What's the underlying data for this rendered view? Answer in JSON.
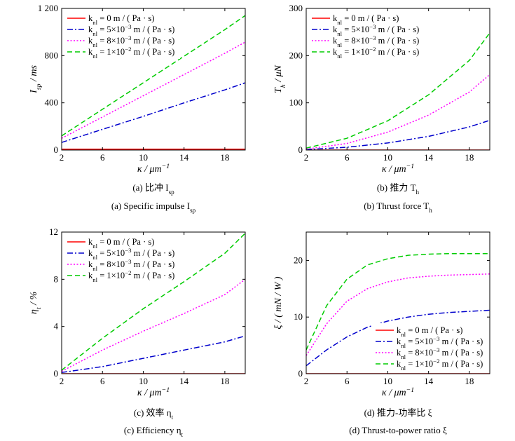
{
  "chart_data": [
    {
      "type": "line",
      "xlabel": "κ / μm⁻¹",
      "ylabel": "I_sp / ms",
      "xlim": [
        2,
        20
      ],
      "ylim": [
        0,
        1200
      ],
      "xticks": [
        2,
        6,
        10,
        14,
        18
      ],
      "yticks": [
        0,
        400,
        800,
        1200
      ],
      "ytick_labels": [
        "0",
        "400",
        "800",
        "1 200"
      ],
      "legend_position": "top-left",
      "caption_cn": "(a) 比冲 I_sp",
      "caption_en": "(a) Specific impulse I_sp",
      "series": [
        {
          "name": "k_nl = 0 m / ( Pa · s)",
          "color": "#ff0000",
          "dash": "solid",
          "x": [
            2,
            6,
            10,
            14,
            20
          ],
          "y": [
            8,
            8,
            8,
            8,
            8
          ]
        },
        {
          "name": "k_nl = 5×10⁻³ m / ( Pa · s)",
          "color": "#0000cc",
          "dash": "dashdot",
          "x": [
            2,
            6,
            10,
            14,
            18,
            20
          ],
          "y": [
            65,
            175,
            285,
            400,
            510,
            570
          ]
        },
        {
          "name": "k_nl = 8×10⁻³ m / ( Pa · s)",
          "color": "#ff00ff",
          "dash": "dotted",
          "x": [
            2,
            6,
            10,
            14,
            18,
            20
          ],
          "y": [
            100,
            280,
            460,
            640,
            820,
            915
          ]
        },
        {
          "name": "k_nl = 1×10⁻² m / ( Pa · s)",
          "color": "#00cc00",
          "dash": "dashed",
          "x": [
            2,
            6,
            10,
            14,
            18,
            20
          ],
          "y": [
            120,
            345,
            570,
            795,
            1020,
            1140
          ]
        }
      ]
    },
    {
      "type": "line",
      "xlabel": "κ / μm⁻¹",
      "ylabel": "T_h / μN",
      "xlim": [
        2,
        20
      ],
      "ylim": [
        0,
        300
      ],
      "xticks": [
        2,
        6,
        10,
        14,
        18
      ],
      "yticks": [
        0,
        100,
        200,
        300
      ],
      "ytick_labels": [
        "0",
        "100",
        "200",
        "300"
      ],
      "legend_position": "top-left",
      "caption_cn": "(b) 推力 T_h",
      "caption_en": "(b) Thrust force T_h",
      "series": [
        {
          "name": "k_nl = 0 m / ( Pa · s)",
          "color": "#ff0000",
          "dash": "solid",
          "x": [
            2,
            20
          ],
          "y": [
            0,
            0
          ]
        },
        {
          "name": "k_nl = 5×10⁻³ m / ( Pa · s)",
          "color": "#0000cc",
          "dash": "dashdot",
          "x": [
            2,
            6,
            10,
            14,
            18,
            20
          ],
          "y": [
            1,
            6,
            15,
            29,
            49,
            63
          ]
        },
        {
          "name": "k_nl = 8×10⁻³ m / ( Pa · s)",
          "color": "#ff00ff",
          "dash": "dotted",
          "x": [
            2,
            6,
            10,
            14,
            18,
            20
          ],
          "y": [
            2,
            14,
            38,
            74,
            123,
            160
          ]
        },
        {
          "name": "k_nl = 1×10⁻² m / ( Pa · s)",
          "color": "#00cc00",
          "dash": "dashed",
          "x": [
            2,
            6,
            10,
            14,
            18,
            20
          ],
          "y": [
            4,
            25,
            62,
            117,
            190,
            248
          ]
        }
      ]
    },
    {
      "type": "line",
      "xlabel": "κ / μm⁻¹",
      "ylabel": "η_t / %",
      "xlim": [
        2,
        20
      ],
      "ylim": [
        0,
        12
      ],
      "xticks": [
        2,
        6,
        10,
        14,
        18
      ],
      "yticks": [
        0,
        4,
        8,
        12
      ],
      "ytick_labels": [
        "0",
        "4",
        "8",
        "12"
      ],
      "legend_position": "top-left",
      "caption_cn": "(c) 效率 η_t",
      "caption_en": "(c) Efficiency η_t",
      "series": [
        {
          "name": "k_nl = 0 m / ( Pa · s)",
          "color": "#ff0000",
          "dash": "solid",
          "x": [
            2,
            20
          ],
          "y": [
            0,
            0
          ]
        },
        {
          "name": "k_nl = 5×10⁻³ m / ( Pa · s)",
          "color": "#0000cc",
          "dash": "dashdot",
          "x": [
            2,
            6,
            10,
            14,
            18,
            20
          ],
          "y": [
            0.1,
            0.6,
            1.3,
            2.0,
            2.7,
            3.2
          ]
        },
        {
          "name": "k_nl = 8×10⁻³ m / ( Pa · s)",
          "color": "#ff00ff",
          "dash": "dotted",
          "x": [
            2,
            6,
            10,
            14,
            18,
            20
          ],
          "y": [
            0.2,
            2.0,
            3.6,
            5.1,
            6.7,
            8.0
          ]
        },
        {
          "name": "k_nl = 1×10⁻² m / ( Pa · s)",
          "color": "#00cc00",
          "dash": "dashed",
          "x": [
            2,
            6,
            10,
            14,
            18,
            20
          ],
          "y": [
            0.3,
            3.0,
            5.5,
            7.8,
            10.2,
            11.9
          ]
        }
      ]
    },
    {
      "type": "line",
      "xlabel": "κ / μm⁻¹",
      "ylabel": "ξ / ( mN / W )",
      "xlim": [
        2,
        20
      ],
      "ylim": [
        0,
        25
      ],
      "xticks": [
        2,
        6,
        10,
        14,
        18
      ],
      "yticks": [
        0,
        10,
        20
      ],
      "ytick_labels": [
        "0",
        "10",
        "20"
      ],
      "legend_position": "bottom-right",
      "caption_cn": "(d) 推力-功率比 ξ",
      "caption_en": "(d) Thrust-to-power ratio ξ",
      "series": [
        {
          "name": "k_nl = 0 m / ( Pa · s)",
          "color": "#ff0000",
          "dash": "solid",
          "x": [
            2,
            20
          ],
          "y": [
            0,
            0
          ]
        },
        {
          "name": "k_nl = 5×10⁻³ m / ( Pa · s)",
          "color": "#0000cc",
          "dash": "dashdot",
          "x": [
            2,
            4,
            6,
            8,
            10,
            12,
            14,
            16,
            18,
            20
          ],
          "y": [
            1.4,
            4.2,
            6.5,
            8.2,
            9.3,
            10.0,
            10.5,
            10.8,
            11.0,
            11.2
          ]
        },
        {
          "name": "k_nl = 8×10⁻³ m / ( Pa · s)",
          "color": "#ff00ff",
          "dash": "dotted",
          "x": [
            2,
            4,
            6,
            8,
            10,
            12,
            14,
            16,
            18,
            20
          ],
          "y": [
            3.2,
            8.8,
            12.8,
            15.0,
            16.2,
            16.9,
            17.2,
            17.4,
            17.5,
            17.6
          ]
        },
        {
          "name": "k_nl = 1×10⁻² m / ( Pa · s)",
          "color": "#00cc00",
          "dash": "dashed",
          "x": [
            2,
            4,
            6,
            8,
            10,
            12,
            14,
            16,
            18,
            20
          ],
          "y": [
            4.2,
            12.0,
            16.7,
            19.2,
            20.3,
            20.9,
            21.1,
            21.2,
            21.2,
            21.2
          ]
        }
      ]
    }
  ]
}
